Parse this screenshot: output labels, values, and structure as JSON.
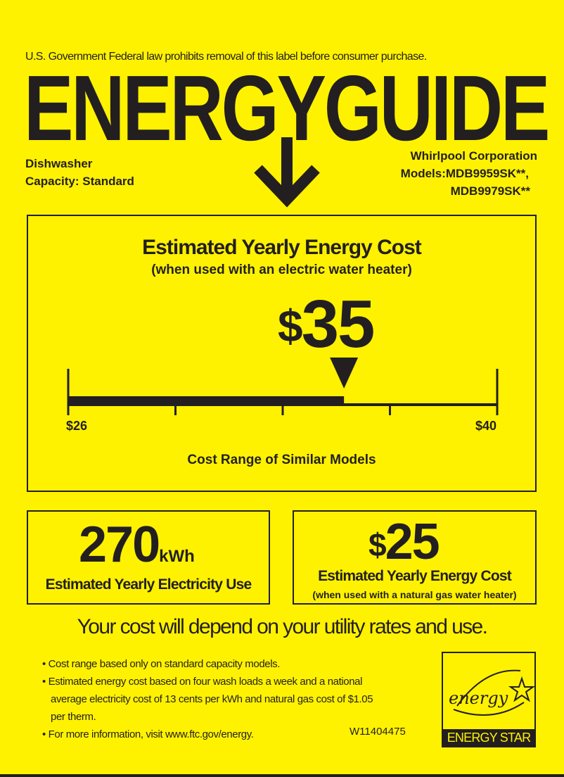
{
  "header": {
    "notice": "U.S. Government  Federal law prohibits removal of this label before consumer purchase.",
    "title": "ENERGYGUIDE",
    "appliance": "Dishwasher",
    "capacity": "Capacity: Standard",
    "manufacturer": "Whirlpool Corporation",
    "models_line1": "Models:MDB9959SK**,",
    "models_line2": "MDB9979SK**"
  },
  "main_cost": {
    "title": "Estimated Yearly Energy Cost",
    "subtitle": "(when used with an electric water heater)",
    "currency": "$",
    "value": "35",
    "range_min_label": "$26",
    "range_max_label": "$40",
    "range_min": 26,
    "range_max": 40,
    "marker_value": 35,
    "range_caption": "Cost Range of Similar Models"
  },
  "electricity": {
    "value": "270",
    "unit": "kWh",
    "label": "Estimated Yearly Electricity Use"
  },
  "gas_cost": {
    "currency": "$",
    "value": "25",
    "label": "Estimated Yearly Energy Cost",
    "sublabel": "(when used with a natural gas water heater)"
  },
  "footer": {
    "headline": "Your cost will depend on your utility rates and use.",
    "bullets": [
      "Cost range based only on standard capacity models.",
      "Estimated energy cost based on four wash loads a week and a national average electricity cost of 13 cents per kWh and natural gas cost of $1.05 per therm.",
      "For more information, visit www.ftc.gov/energy."
    ],
    "label_code": "W11404475",
    "logo_script": "energy",
    "logo_text": "ENERGY STAR"
  },
  "colors": {
    "background": "#fff200",
    "ink": "#231f20"
  }
}
